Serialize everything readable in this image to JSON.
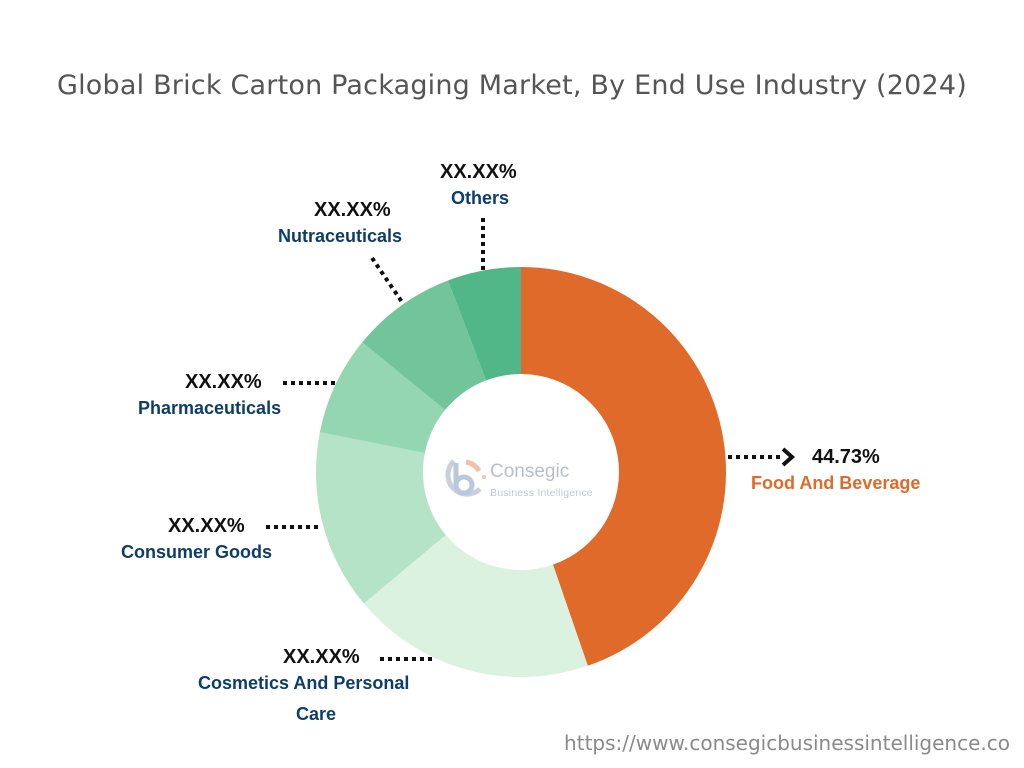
{
  "title": "Global Brick Carton Packaging Market, By End Use Industry (2024)",
  "footer": {
    "url": "https://www.consegicbusinessintelligence.co"
  },
  "watermark": {
    "brand": "Consegic",
    "sub": "Business Intelligence"
  },
  "colors": {
    "food_and_beverage": "#e06a2a",
    "cosmetics": "#dbf2e0",
    "consumer_goods": "#b4e3c8",
    "pharmaceuticals": "#93d6b1",
    "nutraceuticals": "#72c59b",
    "others": "#52b788",
    "label_text": "#0e3d6b",
    "title_text": "#555555"
  },
  "labels": {
    "food": {
      "pct": "44.73%",
      "name": "Food And Beverage"
    },
    "cosmetics": {
      "pct": "XX.XX%",
      "name1": "Cosmetics And Personal",
      "name2": "Care"
    },
    "consumer": {
      "pct": "XX.XX%",
      "name": "Consumer Goods"
    },
    "pharma": {
      "pct": "XX.XX%",
      "name": "Pharmaceuticals"
    },
    "nutra": {
      "pct": "XX.XX%",
      "name": "Nutraceuticals"
    },
    "others": {
      "pct": "XX.XX%",
      "name": "Others"
    }
  },
  "chart_data": {
    "type": "pie",
    "subtype": "donut",
    "title": "Global Brick Carton Packaging Market, By End Use Industry (2024)",
    "categories": [
      "Food And Beverage",
      "Cosmetics And Personal Care",
      "Consumer Goods",
      "Pharmaceuticals",
      "Nutraceuticals",
      "Others"
    ],
    "values": [
      44.73,
      19.2,
      14.2,
      7.8,
      8.3,
      5.8
    ],
    "value_labels": [
      "44.73%",
      "XX.XX%",
      "XX.XX%",
      "XX.XX%",
      "XX.XX%",
      "XX.XX%"
    ],
    "note": "Only Food And Beverage value is shown; other values are masked as XX.XX% and estimated from slice angles.",
    "start_angle": "12 o'clock, clockwise",
    "legend": "none (direct labels)"
  }
}
